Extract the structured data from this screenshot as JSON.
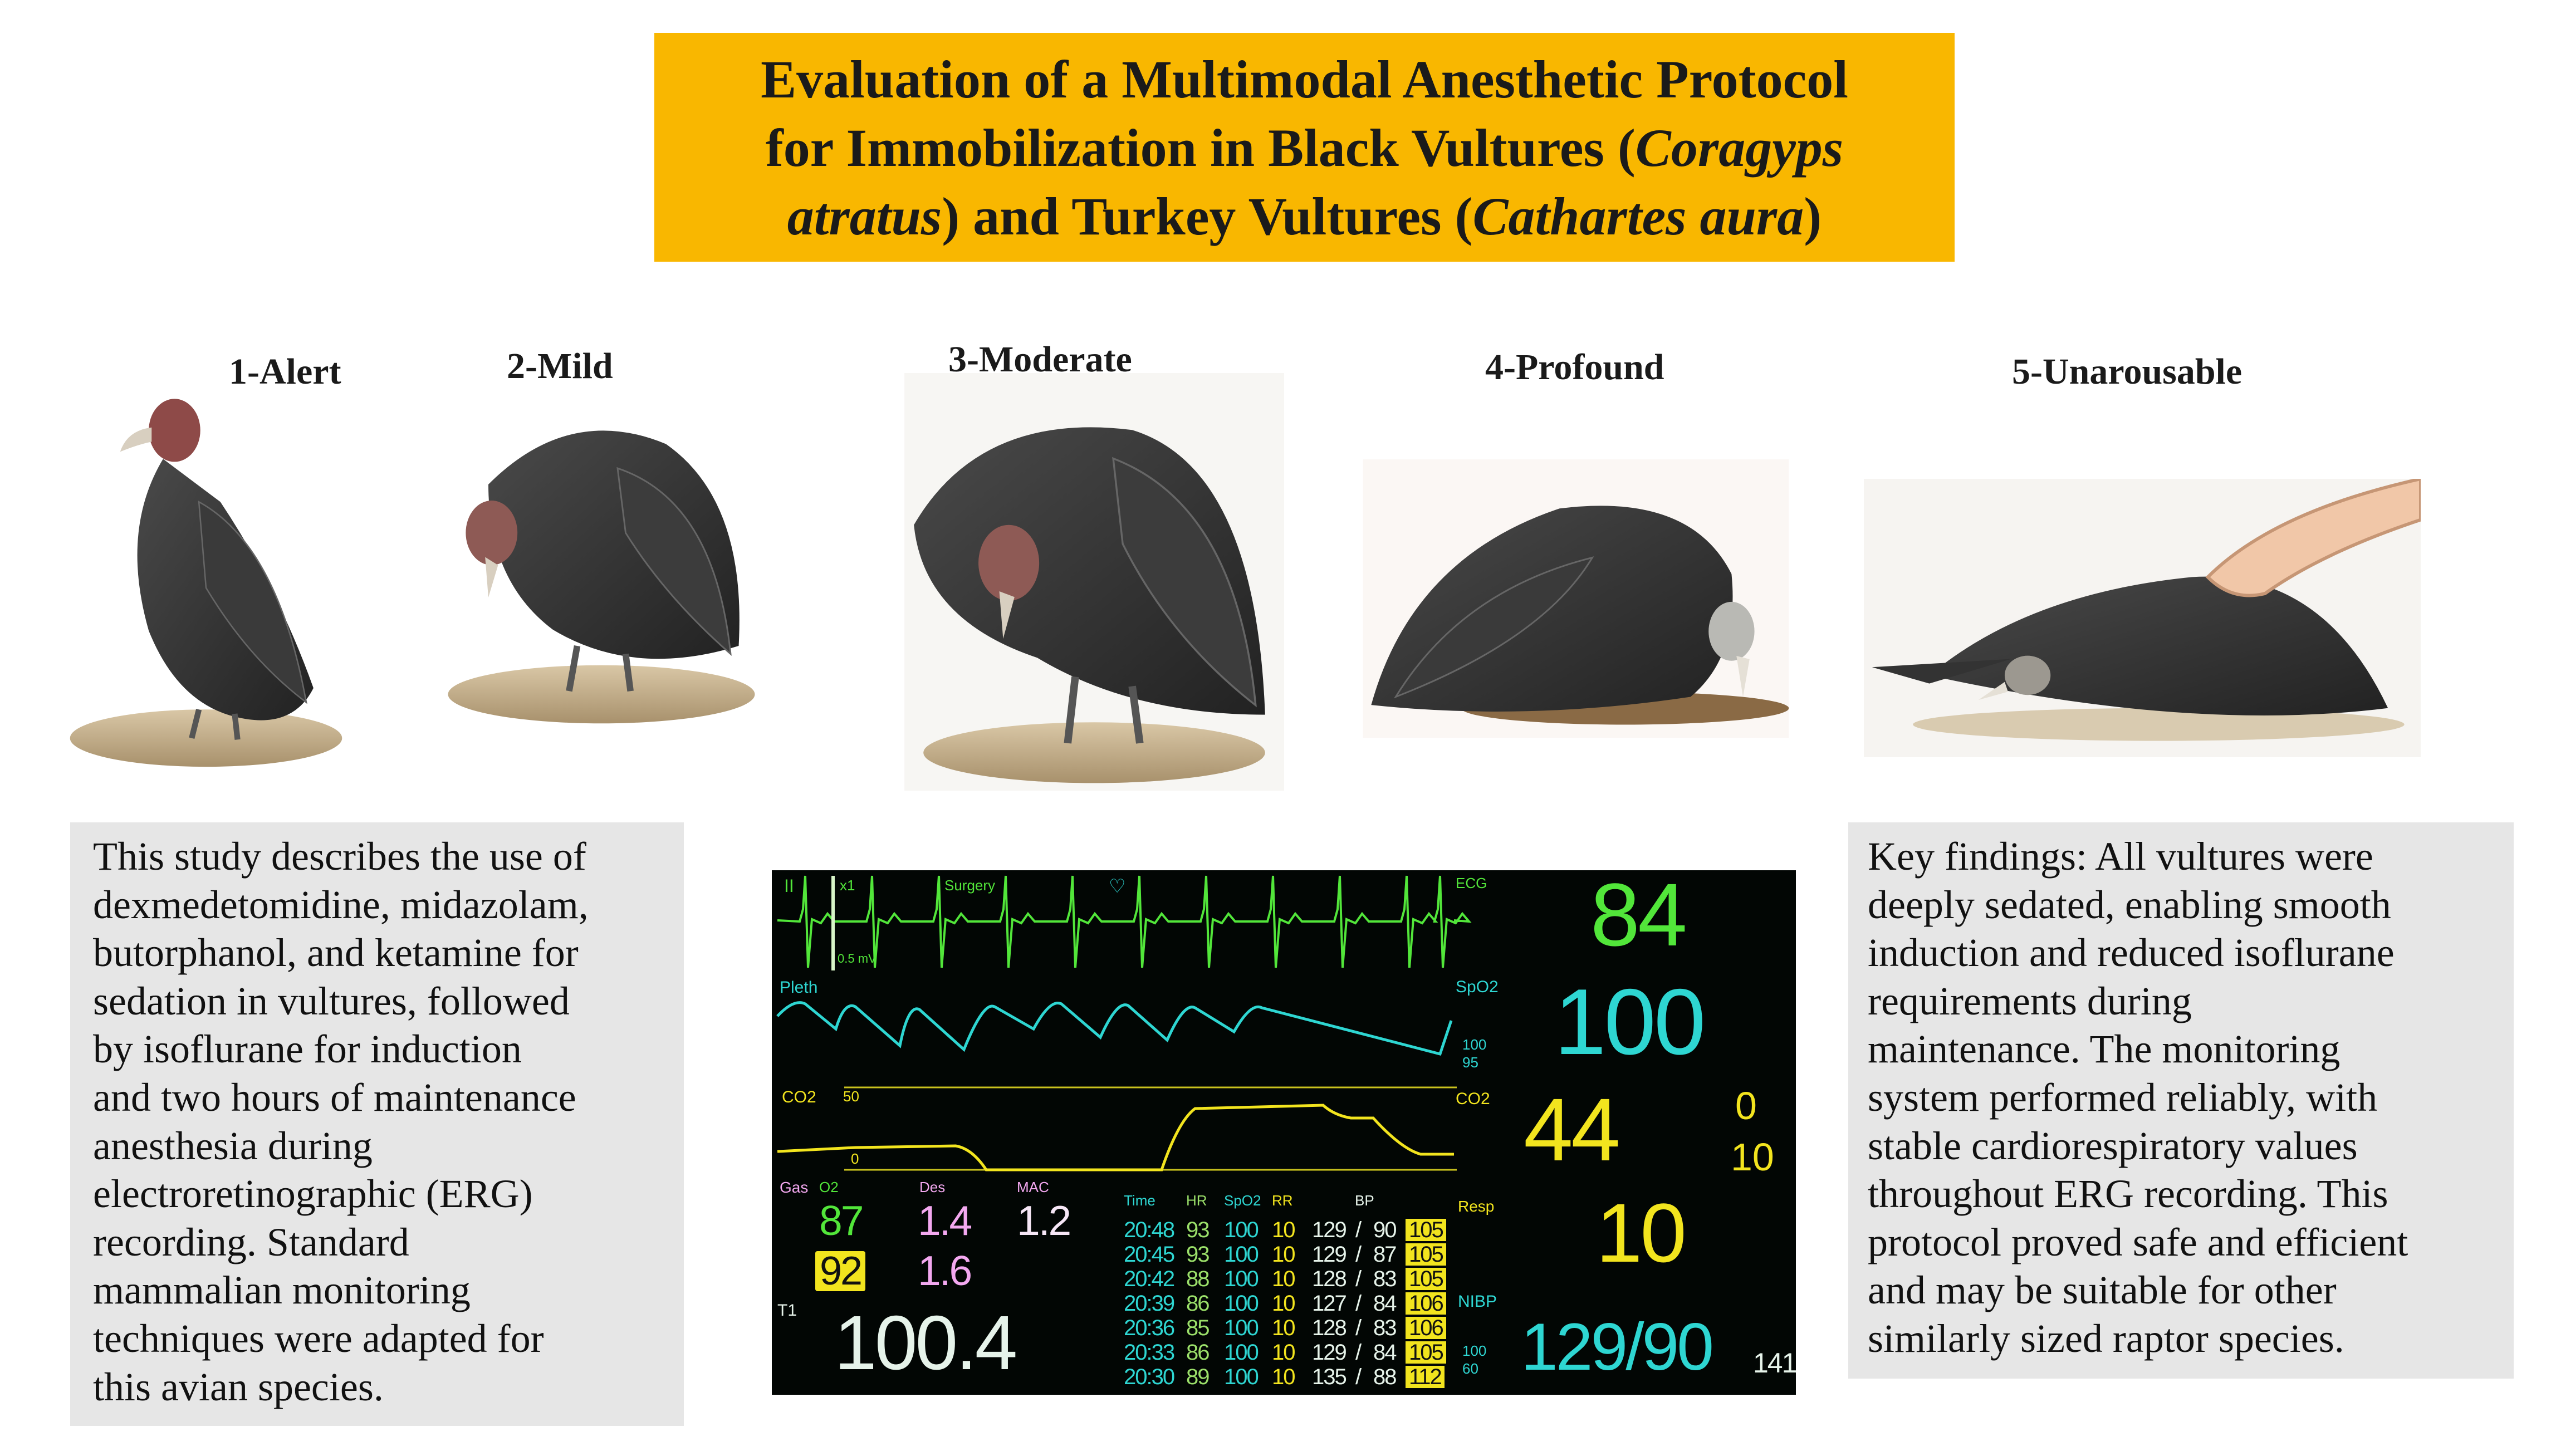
{
  "title": {
    "line1": "Evaluation of a Multimodal Anesthetic Protocol",
    "line2_a": "for Immobilization in Black Vultures (",
    "line2_italic": "Coragyps",
    "line3_italic_a": "atratus",
    "line3_b": ") and Turkey Vultures (",
    "line3_italic_b": "Cathartes aura",
    "line3_c": ")"
  },
  "stages": [
    {
      "label": "1-Alert"
    },
    {
      "label": "2-Mild"
    },
    {
      "label": "3-Moderate"
    },
    {
      "label": "4-Profound"
    },
    {
      "label": "5-Unarousable"
    }
  ],
  "left_text": {
    "lines": [
      "This study describes the use of",
      "dexmedetomidine, midazolam,",
      "butorphanol, and ketamine for",
      "sedation in vultures, followed",
      "by isoflurane for induction",
      "and two hours of maintenance",
      "anesthesia during",
      "electroretinographic (ERG)",
      "recording. Standard",
      "mammalian monitoring",
      "techniques were adapted for",
      "this avian species."
    ]
  },
  "right_text": {
    "lines": [
      "Key findings: All vultures were",
      "deeply sedated, enabling smooth",
      "induction and reduced isoflurane",
      "requirements during",
      "maintenance. The monitoring",
      "system performed reliably, with",
      "stable cardiorespiratory values",
      "throughout ERG recording. This",
      "protocol proved safe and efficient",
      "and may be suitable for other",
      "similarly sized raptor species."
    ]
  },
  "monitor": {
    "colors": {
      "ecg": "#52e63a",
      "pleth": "#2ed6d2",
      "co2": "#f2e41e",
      "gas": "#f3a8f0"
    },
    "ecg_lead": "II",
    "ecg_gain": "x1",
    "ecg_mode": "Surgery",
    "ecg_scale": "0.5 mV",
    "ecg_label": "ECG",
    "pleth_label": "Pleth",
    "co2_label": "CO2",
    "co2_scale_high": "50",
    "co2_scale_low": "0",
    "hr": "84",
    "spo2_label": "SpO2",
    "spo2": "100",
    "spo2_limits": [
      "100",
      "95"
    ],
    "co2_side_label": "CO2",
    "etco2": "44",
    "fico2": "0",
    "awrr": "10",
    "resp_label": "Resp",
    "resp": "10",
    "gas": {
      "label": "Gas",
      "o2_label": "O2",
      "des_label": "Des",
      "mac_label": "MAC",
      "o2_et": "87",
      "o2_fi": "92",
      "des_et": "1.4",
      "des_fi": "1.6",
      "mac": "1.2"
    },
    "temp_label": "T1",
    "temp": "100.4",
    "table": {
      "headers": [
        "Time",
        "HR",
        "SpO2",
        "RR",
        "BP"
      ],
      "rows": [
        {
          "time": "20:48",
          "hr": "93",
          "spo2": "100",
          "rr": "10",
          "sys": "129",
          "dia": "90",
          "map": "105"
        },
        {
          "time": "20:45",
          "hr": "93",
          "spo2": "100",
          "rr": "10",
          "sys": "129",
          "dia": "87",
          "map": "105"
        },
        {
          "time": "20:42",
          "hr": "88",
          "spo2": "100",
          "rr": "10",
          "sys": "128",
          "dia": "83",
          "map": "105"
        },
        {
          "time": "20:39",
          "hr": "86",
          "spo2": "100",
          "rr": "10",
          "sys": "127",
          "dia": "84",
          "map": "106"
        },
        {
          "time": "20:36",
          "hr": "85",
          "spo2": "100",
          "rr": "10",
          "sys": "128",
          "dia": "83",
          "map": "106"
        },
        {
          "time": "20:33",
          "hr": "86",
          "spo2": "100",
          "rr": "10",
          "sys": "129",
          "dia": "84",
          "map": "105"
        },
        {
          "time": "20:30",
          "hr": "89",
          "spo2": "100",
          "rr": "10",
          "sys": "135",
          "dia": "88",
          "map": "112"
        }
      ]
    },
    "nibp_label": "NIBP",
    "nibp": "129/90",
    "nibp_limits": [
      "100",
      "60"
    ],
    "nibp_extra": "141"
  }
}
